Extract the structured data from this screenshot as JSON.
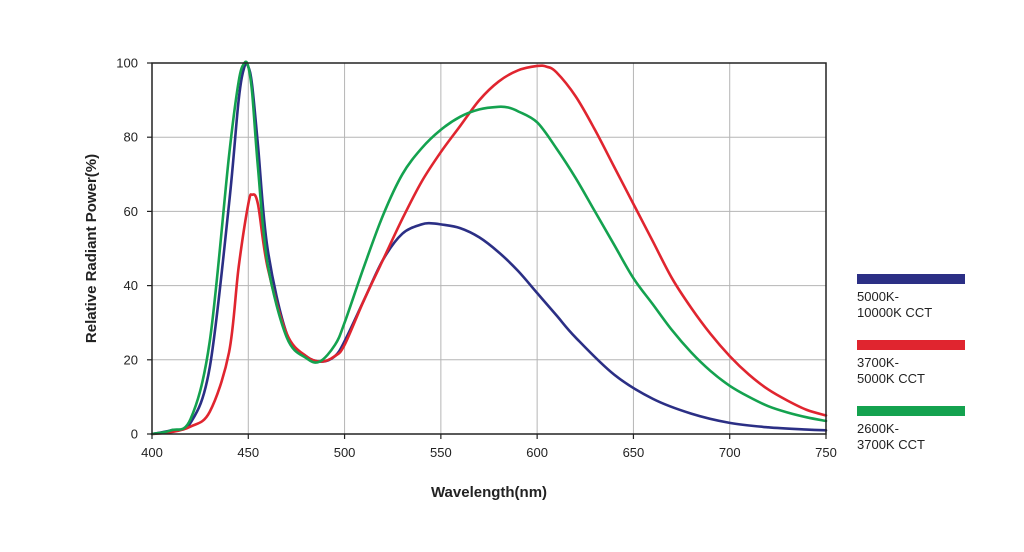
{
  "chart_data": {
    "type": "line",
    "title": "",
    "xlabel": "Wavelength(nm)",
    "ylabel": "Relative Radiant Power(%)",
    "xlim": [
      400,
      750
    ],
    "ylim": [
      0,
      100
    ],
    "xticks": [
      "400",
      "450",
      "500",
      "550",
      "600",
      "650",
      "700",
      "750"
    ],
    "yticks": [
      "0",
      "20",
      "40",
      "60",
      "80",
      "100"
    ],
    "grid": true,
    "legend_position": "right",
    "series": [
      {
        "name": "5000K-10000K CCT",
        "legend_lines": [
          "5000K-",
          "10000K CCT"
        ],
        "color": "#2b2f85",
        "x": [
          400,
          410,
          420,
          430,
          440,
          445,
          448,
          450,
          452,
          455,
          460,
          470,
          480,
          488,
          495,
          500,
          510,
          520,
          530,
          540,
          545,
          550,
          560,
          570,
          580,
          590,
          600,
          610,
          620,
          640,
          660,
          680,
          700,
          720,
          740,
          750
        ],
        "y": [
          0,
          1,
          3,
          18,
          62,
          90,
          99,
          99,
          94,
          78,
          50,
          27,
          21,
          19.5,
          21,
          25,
          36,
          47,
          54,
          56.5,
          56.8,
          56.5,
          55.5,
          53,
          49,
          44,
          38,
          32,
          26,
          16,
          9.5,
          5.5,
          3,
          1.8,
          1.2,
          1
        ]
      },
      {
        "name": "3700K-5000K CCT",
        "legend_lines": [
          "3700K-",
          "5000K CCT"
        ],
        "color": "#e0252f",
        "x": [
          400,
          410,
          420,
          430,
          440,
          445,
          450,
          452,
          455,
          460,
          470,
          480,
          488,
          495,
          500,
          510,
          520,
          530,
          540,
          550,
          560,
          570,
          580,
          590,
          600,
          605,
          610,
          620,
          630,
          640,
          650,
          660,
          670,
          680,
          690,
          700,
          710,
          720,
          730,
          740,
          750
        ],
        "y": [
          0,
          0.5,
          2,
          6,
          22,
          45,
          62,
          64.5,
          62,
          45,
          27,
          21,
          19.5,
          21,
          24,
          36,
          47,
          58,
          68,
          76,
          83,
          90,
          95,
          98,
          99.2,
          99,
          97.5,
          91,
          82,
          72,
          62,
          52,
          42,
          34,
          27,
          21,
          16,
          12,
          9,
          6.5,
          5
        ]
      },
      {
        "name": "2600K-3700K CCT",
        "legend_lines": [
          "2600K-",
          "3700K CCT"
        ],
        "color": "#14a24f",
        "x": [
          400,
          410,
          420,
          430,
          440,
          445,
          448,
          450,
          452,
          455,
          460,
          470,
          480,
          487,
          495,
          500,
          510,
          520,
          530,
          540,
          550,
          560,
          570,
          580,
          585,
          590,
          600,
          610,
          620,
          630,
          640,
          650,
          660,
          670,
          680,
          690,
          700,
          710,
          720,
          730,
          740,
          750
        ],
        "y": [
          0,
          1,
          4,
          25,
          75,
          95,
          100,
          99,
          92,
          72,
          46,
          26,
          20.5,
          19.5,
          24,
          30,
          45,
          59,
          70,
          77,
          82,
          85.5,
          87.5,
          88.2,
          88,
          87,
          84,
          77,
          69,
          60,
          51,
          42,
          35,
          28,
          22,
          17,
          13,
          10,
          7.5,
          5.8,
          4.5,
          3.5
        ]
      }
    ]
  }
}
